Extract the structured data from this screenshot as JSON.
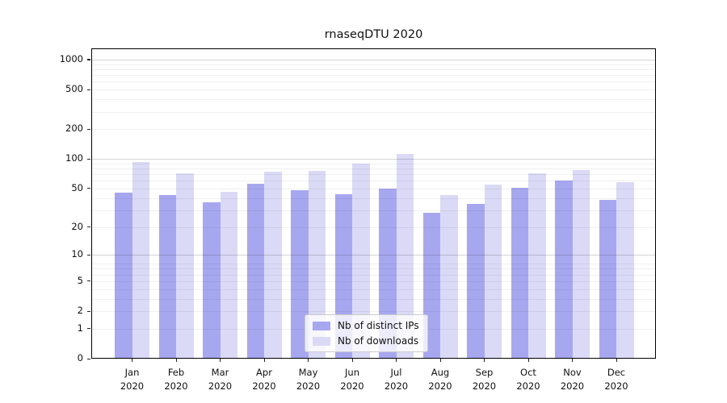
{
  "chart_data": {
    "type": "bar",
    "title": "rnaseqDTU 2020",
    "categories": [
      {
        "month": "Jan",
        "year": "2020"
      },
      {
        "month": "Feb",
        "year": "2020"
      },
      {
        "month": "Mar",
        "year": "2020"
      },
      {
        "month": "Apr",
        "year": "2020"
      },
      {
        "month": "May",
        "year": "2020"
      },
      {
        "month": "Jun",
        "year": "2020"
      },
      {
        "month": "Jul",
        "year": "2020"
      },
      {
        "month": "Aug",
        "year": "2020"
      },
      {
        "month": "Sep",
        "year": "2020"
      },
      {
        "month": "Oct",
        "year": "2020"
      },
      {
        "month": "Nov",
        "year": "2020"
      },
      {
        "month": "Dec",
        "year": "2020"
      }
    ],
    "series": [
      {
        "name": "Nb of distinct IPs",
        "color": "#a7a7f0",
        "values": [
          45,
          43,
          36,
          56,
          48,
          44,
          50,
          28,
          35,
          51,
          60,
          38
        ]
      },
      {
        "name": "Nb of downloads",
        "color": "#dadaf6",
        "values": [
          93,
          72,
          46,
          74,
          75,
          89,
          113,
          43,
          55,
          72,
          77,
          58
        ]
      }
    ],
    "y_axis": {
      "scale": "log10(value+1)",
      "ticks": [
        0,
        1,
        2,
        5,
        10,
        20,
        50,
        100,
        200,
        500,
        1000
      ],
      "major_gridlines": [
        10,
        100,
        1000
      ],
      "minor_gridlines": [
        1,
        2,
        3,
        4,
        5,
        6,
        7,
        8,
        20,
        30,
        40,
        50,
        60,
        70,
        80,
        90,
        200,
        300,
        400,
        500,
        600,
        700,
        800,
        900
      ],
      "ylim": [
        0,
        1200
      ]
    },
    "legend_position": "lower center",
    "grid": "horizontal, drawn over bars",
    "background_color": "#ffffff"
  }
}
